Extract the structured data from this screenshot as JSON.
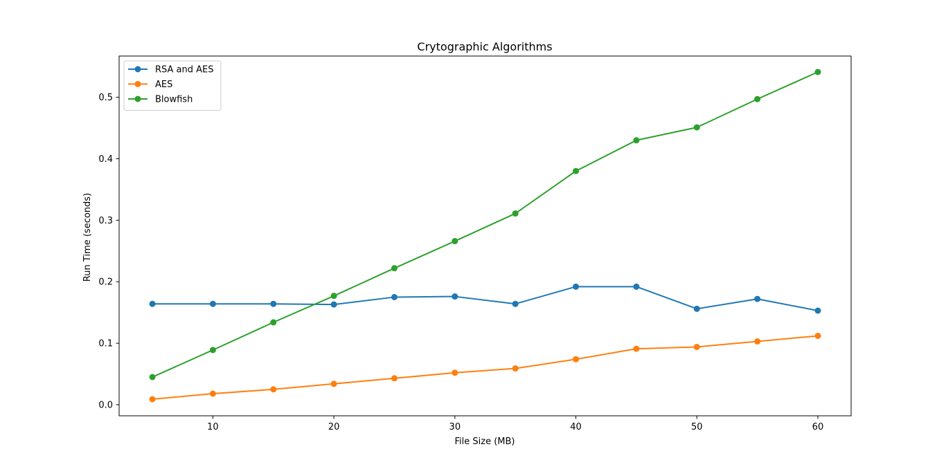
{
  "chart_data": {
    "type": "line",
    "title": "Crytographic Algorithms",
    "xlabel": "File Size (MB)",
    "ylabel": "Run Time (seconds)",
    "x": [
      5,
      10,
      15,
      20,
      25,
      30,
      35,
      40,
      45,
      50,
      55,
      60
    ],
    "xlim": [
      2.25,
      62.75
    ],
    "ylim": [
      -0.018,
      0.567
    ],
    "xticks": [
      10,
      20,
      30,
      40,
      50,
      60
    ],
    "yticks": [
      0.0,
      0.1,
      0.2,
      0.3,
      0.4,
      0.5
    ],
    "xtick_labels": [
      "10",
      "20",
      "30",
      "40",
      "50",
      "60"
    ],
    "ytick_labels": [
      "0.0",
      "0.1",
      "0.2",
      "0.3",
      "0.4",
      "0.5"
    ],
    "grid": false,
    "legend_position": "top-left",
    "series": [
      {
        "name": "RSA and AES",
        "color": "#1f77b4",
        "marker": "circle",
        "values": [
          0.164,
          0.164,
          0.164,
          0.163,
          0.175,
          0.176,
          0.164,
          0.192,
          0.192,
          0.156,
          0.172,
          0.153
        ]
      },
      {
        "name": "AES",
        "color": "#ff7f0e",
        "marker": "circle",
        "values": [
          0.009,
          0.018,
          0.025,
          0.034,
          0.043,
          0.052,
          0.059,
          0.074,
          0.091,
          0.094,
          0.103,
          0.112
        ]
      },
      {
        "name": "Blowfish",
        "color": "#2ca02c",
        "marker": "circle",
        "values": [
          0.045,
          0.089,
          0.134,
          0.177,
          0.222,
          0.266,
          0.311,
          0.38,
          0.43,
          0.451,
          0.497,
          0.541
        ]
      }
    ]
  }
}
